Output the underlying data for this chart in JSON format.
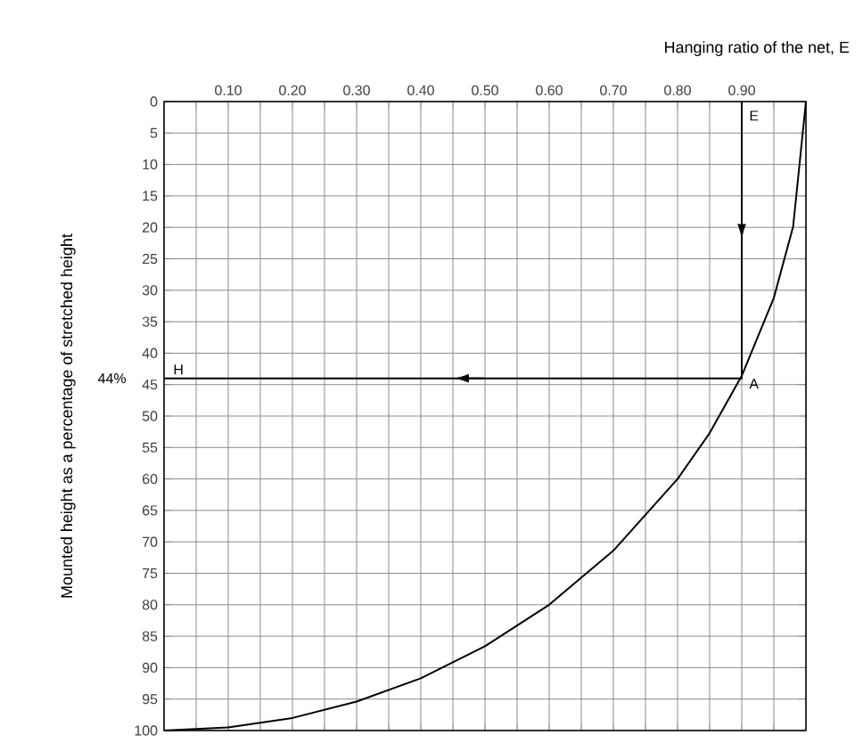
{
  "chart_data": {
    "type": "line",
    "xlabel": "Hanging ratio of the net, E",
    "ylabel": "Mounted height as a percentage of stretched height",
    "xlim": [
      0,
      1
    ],
    "ylim": [
      100,
      0
    ],
    "xticks": [
      {
        "value": 0.05,
        "label": null
      },
      {
        "value": 0.1,
        "label": "0.10"
      },
      {
        "value": 0.15,
        "label": null
      },
      {
        "value": 0.2,
        "label": "0.20"
      },
      {
        "value": 0.25,
        "label": null
      },
      {
        "value": 0.3,
        "label": "0.30"
      },
      {
        "value": 0.35,
        "label": null
      },
      {
        "value": 0.4,
        "label": "0.40"
      },
      {
        "value": 0.45,
        "label": null
      },
      {
        "value": 0.5,
        "label": "0.50"
      },
      {
        "value": 0.55,
        "label": null
      },
      {
        "value": 0.6,
        "label": "0.60"
      },
      {
        "value": 0.65,
        "label": null
      },
      {
        "value": 0.7,
        "label": "0.70"
      },
      {
        "value": 0.75,
        "label": null
      },
      {
        "value": 0.8,
        "label": "0.80"
      },
      {
        "value": 0.85,
        "label": null
      },
      {
        "value": 0.9,
        "label": "0.90"
      },
      {
        "value": 0.95,
        "label": null
      }
    ],
    "yticks": [
      0,
      5,
      10,
      15,
      20,
      25,
      30,
      35,
      40,
      45,
      50,
      55,
      60,
      65,
      70,
      75,
      80,
      85,
      90,
      95,
      100
    ],
    "grid": true,
    "series": [
      {
        "color": "#000000",
        "x": [
          0,
          0.1,
          0.2,
          0.3,
          0.4,
          0.5,
          0.6,
          0.7,
          0.8,
          0.85,
          0.9,
          0.95,
          0.98,
          1.0
        ],
        "values": [
          100,
          99.5,
          98,
          95.4,
          91.7,
          86.6,
          80,
          71.4,
          60,
          52.7,
          43.6,
          31.2,
          19.9,
          0
        ]
      },
      {
        "color": "#000000",
        "x": [
          0.9,
          0.9,
          0
        ],
        "values": [
          0,
          44,
          44
        ]
      }
    ],
    "annotations": [
      "E",
      "A",
      "H",
      "44%"
    ]
  }
}
